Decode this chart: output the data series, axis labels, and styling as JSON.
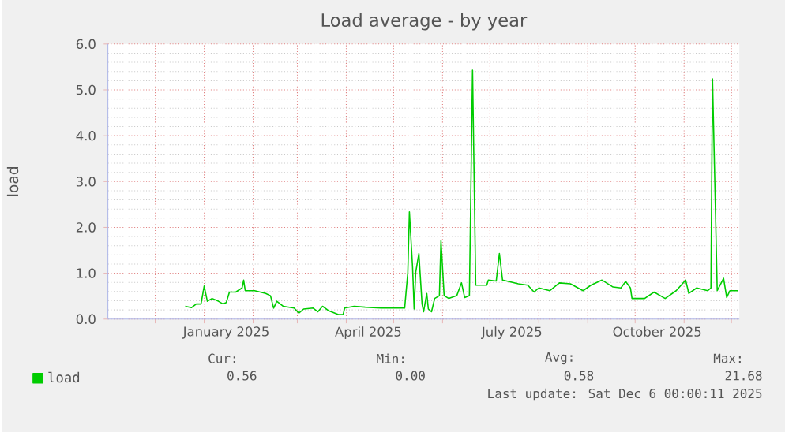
{
  "chart_data": {
    "type": "line",
    "title": "Load average - by year",
    "ylabel": "load",
    "x": [
      "2024-12-20",
      "2024-12-24",
      "2024-12-27",
      "2024-12-30",
      "2025-01-01",
      "2025-01-03",
      "2025-01-06",
      "2025-01-10",
      "2025-01-13",
      "2025-01-15",
      "2025-01-17",
      "2025-01-21",
      "2025-01-25",
      "2025-01-26",
      "2025-01-27",
      "2025-02-02",
      "2025-02-09",
      "2025-02-12",
      "2025-02-14",
      "2025-02-16",
      "2025-02-20",
      "2025-02-27",
      "2025-03-02",
      "2025-03-05",
      "2025-03-11",
      "2025-03-14",
      "2025-03-17",
      "2025-03-21",
      "2025-03-27",
      "2025-03-30",
      "2025-03-31",
      "2025-04-06",
      "2025-04-13",
      "2025-04-23",
      "2025-05-08",
      "2025-05-10",
      "2025-05-11",
      "2025-05-13",
      "2025-05-14",
      "2025-05-15",
      "2025-05-17",
      "2025-05-19",
      "2025-05-20",
      "2025-05-22",
      "2025-05-23",
      "2025-05-25",
      "2025-05-27",
      "2025-05-30",
      "2025-05-31",
      "2025-06-02",
      "2025-06-05",
      "2025-06-10",
      "2025-06-13",
      "2025-06-15",
      "2025-06-18",
      "2025-06-20",
      "2025-06-22",
      "2025-06-29",
      "2025-06-30",
      "2025-07-05",
      "2025-07-07",
      "2025-07-09",
      "2025-07-19",
      "2025-07-25",
      "2025-07-29",
      "2025-08-01",
      "2025-08-08",
      "2025-08-14",
      "2025-08-21",
      "2025-08-29",
      "2025-09-03",
      "2025-09-10",
      "2025-09-17",
      "2025-09-22",
      "2025-09-25",
      "2025-09-28",
      "2025-09-29",
      "2025-10-07",
      "2025-10-13",
      "2025-10-20",
      "2025-10-27",
      "2025-11-02",
      "2025-11-04",
      "2025-11-09",
      "2025-11-16",
      "2025-11-18",
      "2025-11-19",
      "2025-11-22",
      "2025-11-26",
      "2025-11-28",
      "2025-11-30",
      "2025-12-05"
    ],
    "series": [
      {
        "name": "load",
        "color": "#00cc00",
        "values": [
          0.28,
          0.25,
          0.33,
          0.33,
          0.72,
          0.39,
          0.45,
          0.39,
          0.33,
          0.36,
          0.59,
          0.59,
          0.68,
          0.85,
          0.62,
          0.62,
          0.56,
          0.51,
          0.24,
          0.39,
          0.28,
          0.24,
          0.13,
          0.22,
          0.24,
          0.16,
          0.28,
          0.18,
          0.1,
          0.1,
          0.24,
          0.28,
          0.26,
          0.24,
          0.24,
          1.02,
          2.34,
          1.14,
          0.22,
          1.02,
          1.43,
          0.33,
          0.16,
          0.56,
          0.22,
          0.16,
          0.45,
          0.51,
          1.71,
          0.51,
          0.45,
          0.51,
          0.79,
          0.47,
          0.51,
          5.43,
          0.74,
          0.74,
          0.85,
          0.83,
          1.43,
          0.85,
          0.77,
          0.74,
          0.59,
          0.68,
          0.62,
          0.79,
          0.77,
          0.62,
          0.74,
          0.85,
          0.7,
          0.68,
          0.82,
          0.68,
          0.45,
          0.45,
          0.59,
          0.45,
          0.62,
          0.85,
          0.56,
          0.68,
          0.62,
          0.68,
          5.24,
          0.62,
          0.89,
          0.47,
          0.62,
          0.62
        ]
      }
    ],
    "xlim": [
      "2024-11-01",
      "2025-12-06"
    ],
    "xticks": [
      {
        "value": "2024-12-01",
        "label": null
      },
      {
        "value": "2025-01-01",
        "label": null
      },
      {
        "value": "2025-02-01",
        "label": null
      },
      {
        "value": "2025-03-01",
        "label": null
      },
      {
        "value": "2025-04-01",
        "label": null
      },
      {
        "value": "2025-05-01",
        "label": null
      },
      {
        "value": "2025-06-01",
        "label": null
      },
      {
        "value": "2025-07-01",
        "label": null
      },
      {
        "value": "2025-08-01",
        "label": null
      },
      {
        "value": "2025-09-01",
        "label": null
      },
      {
        "value": "2025-10-01",
        "label": null
      },
      {
        "value": "2025-11-01",
        "label": null
      },
      {
        "value": "2025-12-01",
        "label": null
      },
      {
        "value": "2025-01-15",
        "label": "January 2025"
      },
      {
        "value": "2025-04-15",
        "label": "April 2025"
      },
      {
        "value": "2025-07-15",
        "label": "July 2025"
      },
      {
        "value": "2025-10-15",
        "label": "October 2025"
      }
    ],
    "ylim": [
      0,
      6
    ],
    "yticks": [
      {
        "value": 0,
        "label": "0.0"
      },
      {
        "value": 1,
        "label": "1.0"
      },
      {
        "value": 2,
        "label": "2.0"
      },
      {
        "value": 3,
        "label": "3.0"
      },
      {
        "value": 4,
        "label": "4.0"
      },
      {
        "value": 5,
        "label": "5.0"
      },
      {
        "value": 6,
        "label": "6.0"
      }
    ],
    "grid": true,
    "legend": "bottom left",
    "marker": "none",
    "line_style": "solid",
    "annotations": [
      "Cur:",
      "Min:",
      "Avg:",
      "Max:",
      "0.56",
      "0.00",
      "0.58",
      "21.68",
      "Last update: Sat Dec  6 00:00:11 2025"
    ]
  }
}
